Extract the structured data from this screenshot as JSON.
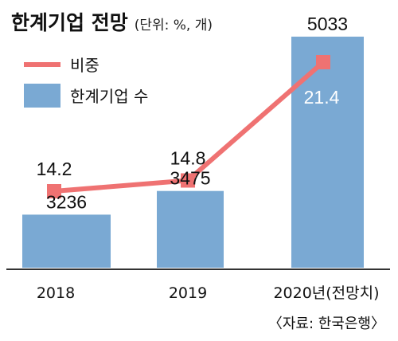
{
  "title": "한계기업 전망",
  "unit": "(단위: %, 개)",
  "source": "〈자료: 한국은행〉",
  "colors": {
    "bar": "#7aa9d3",
    "line": "#ef7272",
    "baseline": "#333333",
    "inside_label": "#ffffff"
  },
  "chart_data": {
    "type": "bar",
    "title": "한계기업 전망",
    "subtitle": "(단위: %, 개)",
    "categories": [
      "2018",
      "2019",
      "2020년(전망치)"
    ],
    "series": [
      {
        "name": "한계기업 수",
        "kind": "bar",
        "values": [
          3236,
          3475,
          5033
        ],
        "labels": [
          "3236",
          "3475",
          "5033"
        ]
      },
      {
        "name": "비중",
        "kind": "line",
        "values": [
          14.2,
          14.8,
          21.4
        ],
        "labels": [
          "14.2",
          "14.8",
          "21.4"
        ]
      }
    ],
    "legend": {
      "position": "top-left",
      "entries": [
        "비중",
        "한계기업 수"
      ]
    },
    "grid": false
  }
}
